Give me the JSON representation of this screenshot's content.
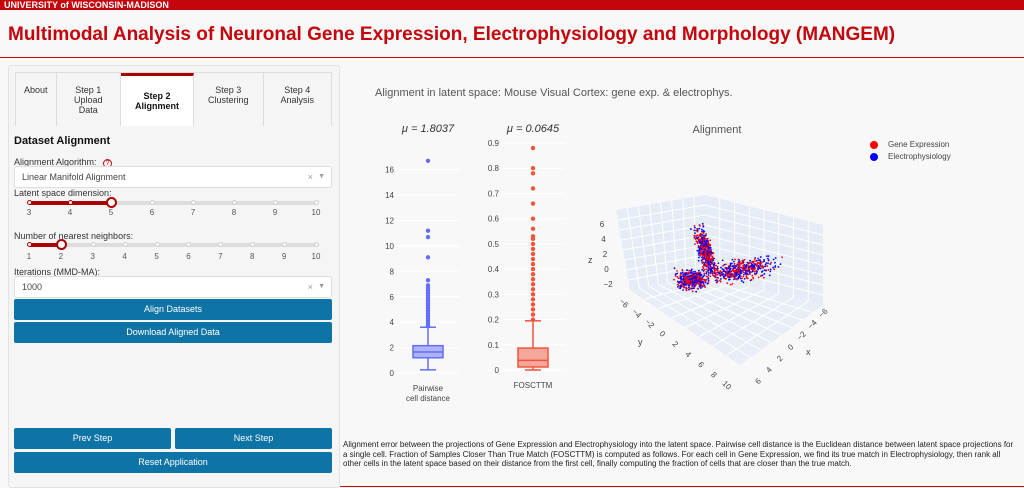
{
  "header": {
    "university": "UNIVERSITY of WISCONSIN-MADISON",
    "title": "Multimodal Analysis of Neuronal Gene Expression, Electrophysiology and Morphology (MANGEM)"
  },
  "tabs": [
    {
      "label": "About"
    },
    {
      "label": "Step 1 Upload Data"
    },
    {
      "label": "Step 2 Alignment",
      "active": true
    },
    {
      "label": "Step 3 Clustering"
    },
    {
      "label": "Step 4 Analysis"
    }
  ],
  "form": {
    "section_title": "Dataset Alignment",
    "algorithm_label": "Alignment Algorithm:",
    "help_icon": "?",
    "algorithm_value": "Linear Manifold Alignment",
    "latent_label": "Latent space dimension:",
    "latent_ticks": [
      "3",
      "4",
      "5",
      "6",
      "7",
      "8",
      "9",
      "10"
    ],
    "latent_value": 5,
    "neighbors_label": "Number of nearest neighbors:",
    "neighbors_ticks": [
      "1",
      "2",
      "3",
      "4",
      "5",
      "6",
      "7",
      "8",
      "9",
      "10"
    ],
    "neighbors_value": 2,
    "iterations_label": "Iterations (MMD-MA):",
    "iterations_value": "1000",
    "clear_symbol": "×",
    "caret_symbol": "▼"
  },
  "buttons": {
    "align": "Align Datasets",
    "download": "Download Aligned Data",
    "prev": "Prev Step",
    "next": "Next Step",
    "reset": "Reset Application"
  },
  "colors": {
    "brand": "#c5050c",
    "button": "#0e73a5",
    "pairwise": "#636efa",
    "foscttm": "#ef553b",
    "gene": "#ff0000",
    "ephys": "#0000ff"
  },
  "main": {
    "chart_title": "Alignment in latent space: Mouse Visual Cortex: gene exp. & electrophys.",
    "caption": "Alignment error between the projections of Gene Expression and Electrophysiology into the latent space. Pairwise cell distance is the Euclidean distance between latent space projections for a single cell. Fraction of Samples Closer Than True Match (FOSCTTM) is computed as follows. For each cell in Gene Expression, we find its true match in Electrophysiology, then rank all other cells in the latent space based on their distance from the first cell, finally computing the fraction of cells that are closer than the true match."
  },
  "chart_data": [
    {
      "type": "box",
      "title": "μ = 1.8037",
      "xlabel": "Pairwise cell distance",
      "ylim": [
        0,
        17
      ],
      "ticks": [
        "0",
        "2",
        "4",
        "6",
        "8",
        "10",
        "12",
        "14",
        "16"
      ],
      "stats": {
        "min": 0.25,
        "q1": 1.2,
        "median": 1.65,
        "q3": 2.15,
        "max": 3.6
      },
      "outliers": [
        3.7,
        3.9,
        4.1,
        4.3,
        4.5,
        4.7,
        4.9,
        5.1,
        5.3,
        5.5,
        5.7,
        5.9,
        6.1,
        6.3,
        6.5,
        6.7,
        6.9,
        7.3,
        9.1,
        10.7,
        11.2,
        16.7
      ]
    },
    {
      "type": "box",
      "title": "μ = 0.0645",
      "xlabel": "FOSCTTM",
      "ylim": [
        0,
        0.9
      ],
      "ticks": [
        "0",
        "0.1",
        "0.2",
        "0.3",
        "0.4",
        "0.5",
        "0.6",
        "0.7",
        "0.8",
        "0.9"
      ],
      "stats": {
        "min": 0,
        "q1": 0.012,
        "median": 0.038,
        "q3": 0.087,
        "max": 0.195
      },
      "outliers": [
        0.2,
        0.22,
        0.24,
        0.26,
        0.28,
        0.3,
        0.32,
        0.34,
        0.36,
        0.38,
        0.4,
        0.42,
        0.44,
        0.46,
        0.48,
        0.5,
        0.52,
        0.53,
        0.56,
        0.6,
        0.66,
        0.72,
        0.78,
        0.8,
        0.88
      ]
    },
    {
      "type": "scatter3d",
      "title": "Alignment",
      "legend": [
        "Gene Expression",
        "Electrophysiology"
      ],
      "legend_position": "top-right",
      "x_label": "x",
      "y_label": "y",
      "z_label": "z",
      "x_ticks": [
        "6",
        "4",
        "2",
        "0",
        "−2",
        "−4",
        "−6"
      ],
      "y_ticks": [
        "−6",
        "−4",
        "−2",
        "0",
        "2",
        "4",
        "6",
        "8",
        "10"
      ],
      "z_ticks": [
        "6",
        "4",
        "2",
        "0",
        "−2"
      ]
    }
  ]
}
